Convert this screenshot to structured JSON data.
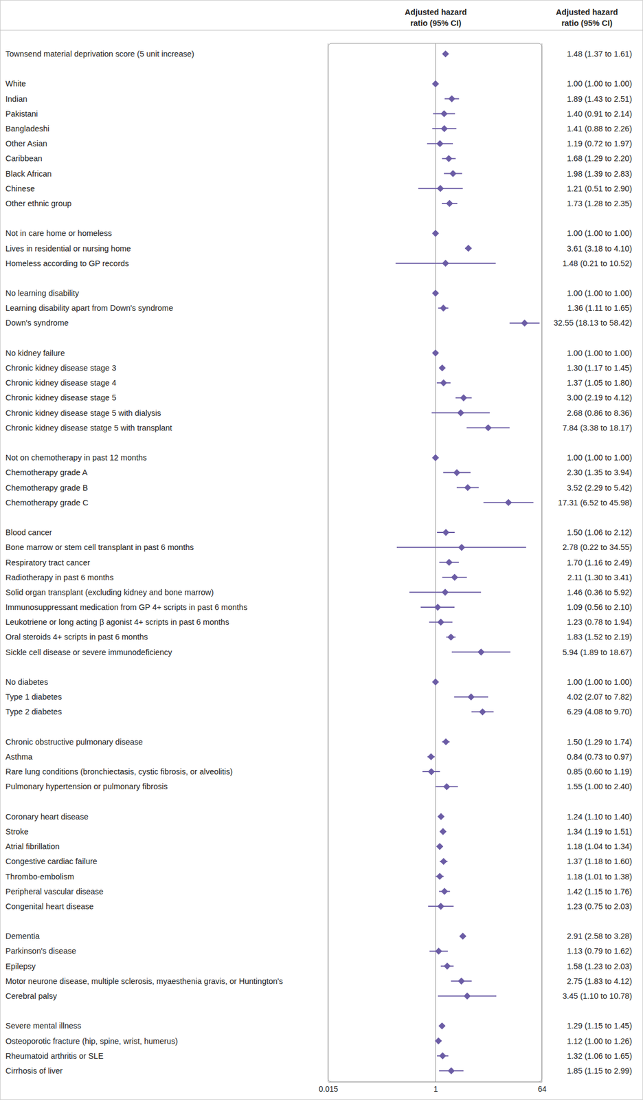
{
  "chart_data": {
    "type": "forest",
    "column_titles": [
      "Adjusted hazard ratio (95% CI)",
      "Adjusted hazard ratio (95% CI)"
    ],
    "log": "x",
    "xlim": [
      0.015,
      64
    ],
    "xticks": [
      0.015,
      1,
      64
    ],
    "grid": true,
    "data_labels": true,
    "color": "#6b5ca5",
    "groups": [
      {
        "categories": [
          "Townsend material deprivation score (5 unit increase)"
        ],
        "values": [
          1.48
        ],
        "lower": [
          1.37
        ],
        "upper": [
          1.61
        ],
        "value_labels": [
          "1.48 (1.37 to 1.61)"
        ]
      },
      {
        "categories": [
          "White",
          "Indian",
          "Pakistani",
          "Bangladeshi",
          "Other Asian",
          "Caribbean",
          "Black African",
          "Chinese",
          "Other ethnic group"
        ],
        "values": [
          1,
          1.89,
          1.4,
          1.41,
          1.19,
          1.68,
          1.98,
          1.21,
          1.73
        ],
        "lower": [
          1,
          1.43,
          0.91,
          0.88,
          0.72,
          1.29,
          1.39,
          0.51,
          1.28
        ],
        "upper": [
          1,
          2.51,
          2.14,
          2.26,
          1.97,
          2.2,
          2.83,
          2.9,
          2.35
        ],
        "value_labels": [
          "1.00 (1.00 to 1.00)",
          "1.89 (1.43 to 2.51)",
          "1.40 (0.91 to 2.14)",
          "1.41 (0.88 to 2.26)",
          "1.19 (0.72 to 1.97)",
          "1.68 (1.29 to 2.20)",
          "1.98 (1.39 to 2.83)",
          "1.21 (0.51 to 2.90)",
          "1.73 (1.28 to 2.35)"
        ]
      },
      {
        "categories": [
          "Not in care home or homeless",
          "Lives in residential or nursing home",
          "Homeless according to GP records"
        ],
        "values": [
          1,
          3.61,
          1.48
        ],
        "lower": [
          1,
          3.18,
          0.21
        ],
        "upper": [
          1,
          4.1,
          10.52
        ],
        "value_labels": [
          "1.00 (1.00 to 1.00)",
          "3.61 (3.18 to 4.10)",
          "1.48 (0.21 to 10.52)"
        ]
      },
      {
        "categories": [
          "No learning disability",
          "Learning disability apart from Down's syndrome",
          "Down's syndrome"
        ],
        "values": [
          1,
          1.36,
          32.55
        ],
        "lower": [
          1,
          1.11,
          18.13
        ],
        "upper": [
          1,
          1.65,
          58.42
        ],
        "value_labels": [
          "1.00 (1.00 to 1.00)",
          "1.36 (1.11 to 1.65)",
          "32.55 (18.13 to 58.42)"
        ]
      },
      {
        "categories": [
          "No kidney failure",
          "Chronic kidney disease stage 3",
          "Chronic kidney disease stage 4",
          "Chronic kidney disease stage 5",
          "Chronic kidney disease stage 5 with dialysis",
          "Chronic kidney disease statge 5 with transplant"
        ],
        "values": [
          1,
          1.3,
          1.37,
          3.0,
          2.68,
          7.84
        ],
        "lower": [
          1,
          1.17,
          1.05,
          2.19,
          0.86,
          3.38
        ],
        "upper": [
          1,
          1.45,
          1.8,
          4.12,
          8.36,
          18.17
        ],
        "value_labels": [
          "1.00 (1.00 to 1.00)",
          "1.30 (1.17 to 1.45)",
          "1.37 (1.05 to 1.80)",
          "3.00 (2.19 to 4.12)",
          "2.68 (0.86 to 8.36)",
          "7.84 (3.38 to 18.17)"
        ]
      },
      {
        "categories": [
          "Not on chemotherapy in past 12 months",
          "Chemotherapy grade A",
          "Chemotherapy grade B",
          "Chemotherapy grade C"
        ],
        "values": [
          1,
          2.3,
          3.52,
          17.31
        ],
        "lower": [
          1,
          1.35,
          2.29,
          6.52
        ],
        "upper": [
          1,
          3.94,
          5.42,
          45.98
        ],
        "value_labels": [
          "1.00 (1.00 to 1.00)",
          "2.30 (1.35 to 3.94)",
          "3.52 (2.29 to 5.42)",
          "17.31 (6.52 to 45.98)"
        ]
      },
      {
        "categories": [
          "Blood cancer",
          "Bone marrow or stem cell transplant in past 6 months",
          "Respiratory tract cancer",
          "Radiotherapy in past 6 months",
          "Solid organ transplant (excluding kidney and bone marrow)",
          "Immunosuppressant medication from GP 4+ scripts in past 6 months",
          "Leukotriene or long acting β agonist 4+ scripts in past 6 months",
          "Oral steroids 4+ scripts in past 6 months",
          "Sickle cell disease or severe immunodeficiency"
        ],
        "values": [
          1.5,
          2.78,
          1.7,
          2.11,
          1.46,
          1.09,
          1.23,
          1.83,
          5.94
        ],
        "lower": [
          1.06,
          0.22,
          1.16,
          1.3,
          0.36,
          0.56,
          0.78,
          1.52,
          1.89
        ],
        "upper": [
          2.12,
          34.55,
          2.49,
          3.41,
          5.92,
          2.1,
          1.94,
          2.19,
          18.67
        ],
        "value_labels": [
          "1.50 (1.06 to 2.12)",
          "2.78 (0.22 to 34.55)",
          "1.70 (1.16 to 2.49)",
          "2.11 (1.30 to 3.41)",
          "1.46 (0.36 to 5.92)",
          "1.09 (0.56 to 2.10)",
          "1.23 (0.78 to 1.94)",
          "1.83 (1.52 to 2.19)",
          "5.94 (1.89 to 18.67)"
        ]
      },
      {
        "categories": [
          "No diabetes",
          "Type 1 diabetes",
          "Type 2 diabetes"
        ],
        "values": [
          1,
          4.02,
          6.29
        ],
        "lower": [
          1,
          2.07,
          4.08
        ],
        "upper": [
          1,
          7.82,
          9.7
        ],
        "value_labels": [
          "1.00 (1.00 to 1.00)",
          "4.02 (2.07 to 7.82)",
          "6.29 (4.08 to 9.70)"
        ]
      },
      {
        "categories": [
          "Chronic obstructive pulmonary disease",
          "Asthma",
          "Rare lung conditions (bronchiectasis, cystic fibrosis, or alveolitis)",
          "Pulmonary hypertension or pulmonary fibrosis"
        ],
        "values": [
          1.5,
          0.84,
          0.85,
          1.55
        ],
        "lower": [
          1.29,
          0.73,
          0.6,
          1.0
        ],
        "upper": [
          1.74,
          0.97,
          1.19,
          2.4
        ],
        "value_labels": [
          "1.50 (1.29 to 1.74)",
          "0.84 (0.73 to 0.97)",
          "0.85 (0.60 to 1.19)",
          "1.55 (1.00 to 2.40)"
        ]
      },
      {
        "categories": [
          "Coronary heart disease",
          "Stroke",
          "Atrial fibrillation",
          "Congestive cardiac failure",
          "Thrombo-embolism",
          "Peripheral vascular disease",
          "Congenital heart disease"
        ],
        "values": [
          1.24,
          1.34,
          1.18,
          1.37,
          1.18,
          1.42,
          1.23
        ],
        "lower": [
          1.1,
          1.19,
          1.04,
          1.18,
          1.01,
          1.15,
          0.75
        ],
        "upper": [
          1.4,
          1.51,
          1.34,
          1.6,
          1.38,
          1.76,
          2.03
        ],
        "value_labels": [
          "1.24 (1.10 to 1.40)",
          "1.34 (1.19 to 1.51)",
          "1.18 (1.04 to 1.34)",
          "1.37 (1.18 to 1.60)",
          "1.18 (1.01 to 1.38)",
          "1.42 (1.15 to 1.76)",
          "1.23 (0.75 to 2.03)"
        ]
      },
      {
        "categories": [
          "Dementia",
          "Parkinson's disease",
          "Epilepsy",
          "Motor neurone disease, multiple sclerosis, myaesthenia gravis, or Huntington's",
          "Cerebral palsy"
        ],
        "values": [
          2.91,
          1.13,
          1.58,
          2.75,
          3.45
        ],
        "lower": [
          2.58,
          0.79,
          1.23,
          1.83,
          1.1
        ],
        "upper": [
          3.28,
          1.62,
          2.03,
          4.12,
          10.78
        ],
        "value_labels": [
          "2.91 (2.58 to 3.28)",
          "1.13 (0.79 to 1.62)",
          "1.58 (1.23 to 2.03)",
          "2.75 (1.83 to 4.12)",
          "3.45 (1.10 to 10.78)"
        ]
      },
      {
        "categories": [
          "Severe mental illness",
          "Osteoporotic fracture (hip, spine, wrist, humerus)",
          "Rheumatoid arthritis or SLE",
          "Cirrhosis of liver"
        ],
        "values": [
          1.29,
          1.12,
          1.32,
          1.85
        ],
        "lower": [
          1.15,
          1.0,
          1.06,
          1.15
        ],
        "upper": [
          1.45,
          1.26,
          1.65,
          2.99
        ],
        "value_labels": [
          "1.29 (1.15 to 1.45)",
          "1.12 (1.00 to 1.26)",
          "1.32 (1.06 to 1.65)",
          "1.85 (1.15 to 2.99)"
        ]
      }
    ]
  }
}
